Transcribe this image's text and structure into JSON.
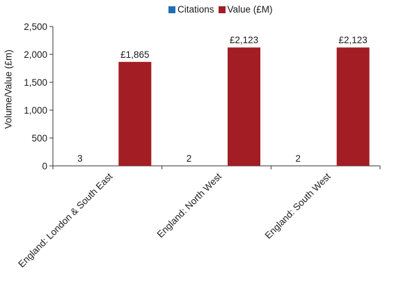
{
  "chart_data": {
    "type": "bar",
    "ylabel": "Volume/Value (£m)",
    "ylim": [
      0,
      2500
    ],
    "yticks": [
      "0",
      "500",
      "1,000",
      "1,500",
      "2,000",
      "2,500"
    ],
    "ytick_values": [
      0,
      500,
      1000,
      1500,
      2000,
      2500
    ],
    "categories": [
      "England: London & South East",
      "England: North West",
      "England: South West"
    ],
    "series": [
      {
        "name": "Citations",
        "color": "#1f6fb5",
        "values": [
          3,
          2,
          2
        ],
        "labels": [
          "3",
          "2",
          "2"
        ]
      },
      {
        "name": "Value (£M)",
        "color": "#a31d24",
        "values": [
          1865,
          2123,
          2123
        ],
        "labels": [
          "£1,865",
          "£2,123",
          "£2,123"
        ]
      }
    ],
    "legend_position": "top",
    "grid": false
  }
}
